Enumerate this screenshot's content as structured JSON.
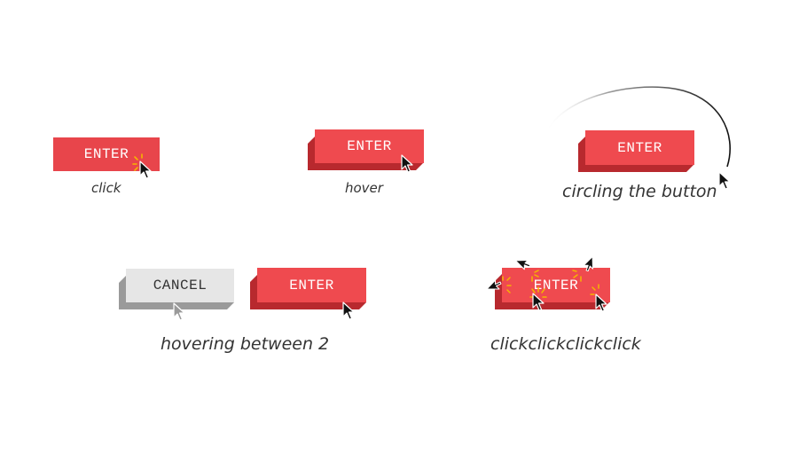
{
  "button_label": "ENTER",
  "cancel_label": "CANCEL",
  "captions": {
    "click": "click",
    "hover": "hover",
    "circling": "circling the button",
    "between": "hovering between 2",
    "multi": "clickclickclickclick"
  },
  "colors": {
    "button_red": "#e8454b",
    "button_side_red": "#b8292e",
    "button_grey": "#e6e6e6",
    "spark": "#f5b400",
    "caption_text": "#333333"
  },
  "icons": [
    "cursor-arrow-icon",
    "click-spark-icon",
    "motion-trail-icon"
  ]
}
